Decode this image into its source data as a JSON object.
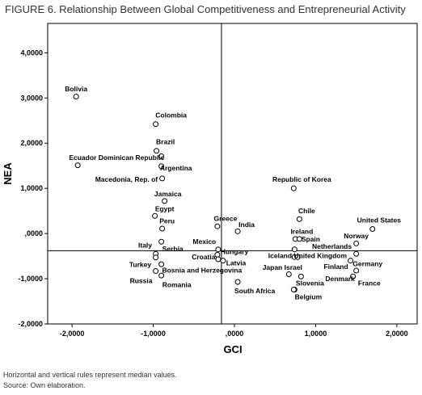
{
  "figure": {
    "title": "FIGURE 6. Relationship Between Global Competitiveness and Entrepreneurial Activity",
    "note_1": "Horizontal and vertical rules represent median values.",
    "note_2": "Source: Own elaboration."
  },
  "chart_data": {
    "type": "scatter",
    "xlabel": "GCI",
    "ylabel": "NEA",
    "xlim": [
      -2.3,
      2.25
    ],
    "ylim": [
      -2.0,
      4.65
    ],
    "x_ticks": [
      -2,
      -1,
      0,
      1,
      2
    ],
    "x_tick_labels": [
      "-2,0000",
      "-1,0000",
      ",0000",
      "1,0000",
      "2,0000"
    ],
    "y_ticks": [
      -2,
      -1,
      0,
      1,
      2,
      3,
      4
    ],
    "y_tick_labels": [
      "-2,0000",
      "-1,0000",
      ",0000",
      "1,0000",
      "2,0000",
      "3,0000",
      "4,0000"
    ],
    "median_x": -0.16,
    "median_y": -0.38,
    "grid": false,
    "points": [
      {
        "label": "Bolivia",
        "x": -1.95,
        "y": 3.03
      },
      {
        "label": "Colombia",
        "x": -0.97,
        "y": 2.42
      },
      {
        "label": "Brazil",
        "x": -0.96,
        "y": 1.83
      },
      {
        "label": "Ecuador",
        "x": -1.93,
        "y": 1.51
      },
      {
        "label": "Dominican Republic",
        "x": -0.9,
        "y": 1.71
      },
      {
        "label": "Argentina",
        "x": -0.9,
        "y": 1.49
      },
      {
        "label": "Macedonia, Rep. of",
        "x": -0.89,
        "y": 1.22
      },
      {
        "label": "Jamaica",
        "x": -0.86,
        "y": 0.72
      },
      {
        "label": "Egypt",
        "x": -0.98,
        "y": 0.39
      },
      {
        "label": "Peru",
        "x": -0.89,
        "y": 0.11
      },
      {
        "label": "Italy",
        "x": -0.9,
        "y": -0.18
      },
      {
        "label": "Serbia",
        "x": -0.97,
        "y": -0.45
      },
      {
        "label": "Turkey",
        "x": -0.97,
        "y": -0.53
      },
      {
        "label": "Bosnia and Herzegovina",
        "x": -0.9,
        "y": -0.68
      },
      {
        "label": "Russia",
        "x": -0.97,
        "y": -0.83
      },
      {
        "label": "Romania",
        "x": -0.9,
        "y": -0.93
      },
      {
        "label": "Greece",
        "x": -0.21,
        "y": 0.16
      },
      {
        "label": "India",
        "x": 0.04,
        "y": 0.05
      },
      {
        "label": "Mexico",
        "x": -0.2,
        "y": -0.35
      },
      {
        "label": "Hungary",
        "x": -0.21,
        "y": -0.47
      },
      {
        "label": "Croatia",
        "x": -0.2,
        "y": -0.57
      },
      {
        "label": "Latvia",
        "x": -0.14,
        "y": -0.6
      },
      {
        "label": "South Africa",
        "x": 0.04,
        "y": -1.07
      },
      {
        "label": "Republic of Korea",
        "x": 0.73,
        "y": 1.0
      },
      {
        "label": "Chile",
        "x": 0.8,
        "y": 0.32
      },
      {
        "label": "Ireland",
        "x": 0.75,
        "y": -0.12
      },
      {
        "label": "Spain",
        "x": 0.8,
        "y": -0.12
      },
      {
        "label": "Netherlands",
        "x": 0.74,
        "y": -0.35
      },
      {
        "label": "Iceland",
        "x": 0.74,
        "y": -0.52
      },
      {
        "label": "United Kingdom",
        "x": 0.78,
        "y": -0.52
      },
      {
        "label": "Japan",
        "x": 0.67,
        "y": -0.9
      },
      {
        "label": "Israel",
        "x": 0.82,
        "y": -0.95
      },
      {
        "label": "Slovenia",
        "x": 0.74,
        "y": -1.24
      },
      {
        "label": "Belgium",
        "x": 0.73,
        "y": -1.24
      },
      {
        "label": "United States",
        "x": 1.7,
        "y": 0.1
      },
      {
        "label": "Norway",
        "x": 1.5,
        "y": -0.22
      },
      {
        "label": "Germany",
        "x": 1.5,
        "y": -0.45
      },
      {
        "label": "Finland",
        "x": 1.43,
        "y": -0.6
      },
      {
        "label": "Denmark",
        "x": 1.5,
        "y": -0.82
      },
      {
        "label": "France",
        "x": 1.46,
        "y": -0.95
      }
    ],
    "labels": [
      {
        "text": "Bolivia",
        "x": -1.95,
        "y": 3.2
      },
      {
        "text": "Colombia",
        "x": -0.78,
        "y": 2.62
      },
      {
        "text": "Brazil",
        "x": -0.85,
        "y": 2.03
      },
      {
        "text": "Ecuador Dominican Republic",
        "x": -1.45,
        "y": 1.68
      },
      {
        "text": "Argentina",
        "x": -0.72,
        "y": 1.45
      },
      {
        "text": "Macedonia, Rep. of",
        "x": -1.33,
        "y": 1.2
      },
      {
        "text": "Jamaica",
        "x": -0.82,
        "y": 0.88
      },
      {
        "text": "Egypt",
        "x": -0.86,
        "y": 0.55
      },
      {
        "text": "Peru",
        "x": -0.83,
        "y": 0.28
      },
      {
        "text": "Italy",
        "x": -1.1,
        "y": -0.26
      },
      {
        "text": "Serbia",
        "x": -0.76,
        "y": -0.34
      },
      {
        "text": "Turkey",
        "x": -1.16,
        "y": -0.69
      },
      {
        "text": "Bosnia and Herzegovina",
        "x": -0.4,
        "y": -0.81
      },
      {
        "text": "Russia",
        "x": -1.15,
        "y": -1.04
      },
      {
        "text": "Romania",
        "x": -0.71,
        "y": -1.13
      },
      {
        "text": "Greece",
        "x": -0.11,
        "y": 0.33
      },
      {
        "text": "India",
        "x": 0.15,
        "y": 0.2
      },
      {
        "text": "Mexico",
        "x": -0.37,
        "y": -0.18
      },
      {
        "text": "Hungary",
        "x": 0.0,
        "y": -0.4
      },
      {
        "text": "Croatia",
        "x": -0.38,
        "y": -0.52
      },
      {
        "text": "Latvia",
        "x": 0.02,
        "y": -0.65
      },
      {
        "text": "South Africa",
        "x": 0.25,
        "y": -1.27
      },
      {
        "text": "Republic of Korea",
        "x": 0.83,
        "y": 1.2
      },
      {
        "text": "Chile",
        "x": 0.89,
        "y": 0.5
      },
      {
        "text": "Ireland",
        "x": 0.83,
        "y": 0.05
      },
      {
        "text": "Spain",
        "x": 0.94,
        "y": -0.12
      },
      {
        "text": "Norway",
        "x": 1.5,
        "y": -0.05
      },
      {
        "text": "Netherlands",
        "x": 1.2,
        "y": -0.28
      },
      {
        "text": "Iceland United Kingdom",
        "x": 0.9,
        "y": -0.49
      },
      {
        "text": "Japan Israel",
        "x": 0.59,
        "y": -0.75
      },
      {
        "text": "Finland",
        "x": 1.25,
        "y": -0.73
      },
      {
        "text": "Germany",
        "x": 1.64,
        "y": -0.67
      },
      {
        "text": "Denmark",
        "x": 1.3,
        "y": -1.0
      },
      {
        "text": "France",
        "x": 1.66,
        "y": -1.1
      },
      {
        "text": "Slovenia",
        "x": 0.93,
        "y": -1.1
      },
      {
        "text": "Belgium",
        "x": 0.91,
        "y": -1.4
      },
      {
        "text": "United States",
        "x": 1.78,
        "y": 0.3
      }
    ]
  }
}
